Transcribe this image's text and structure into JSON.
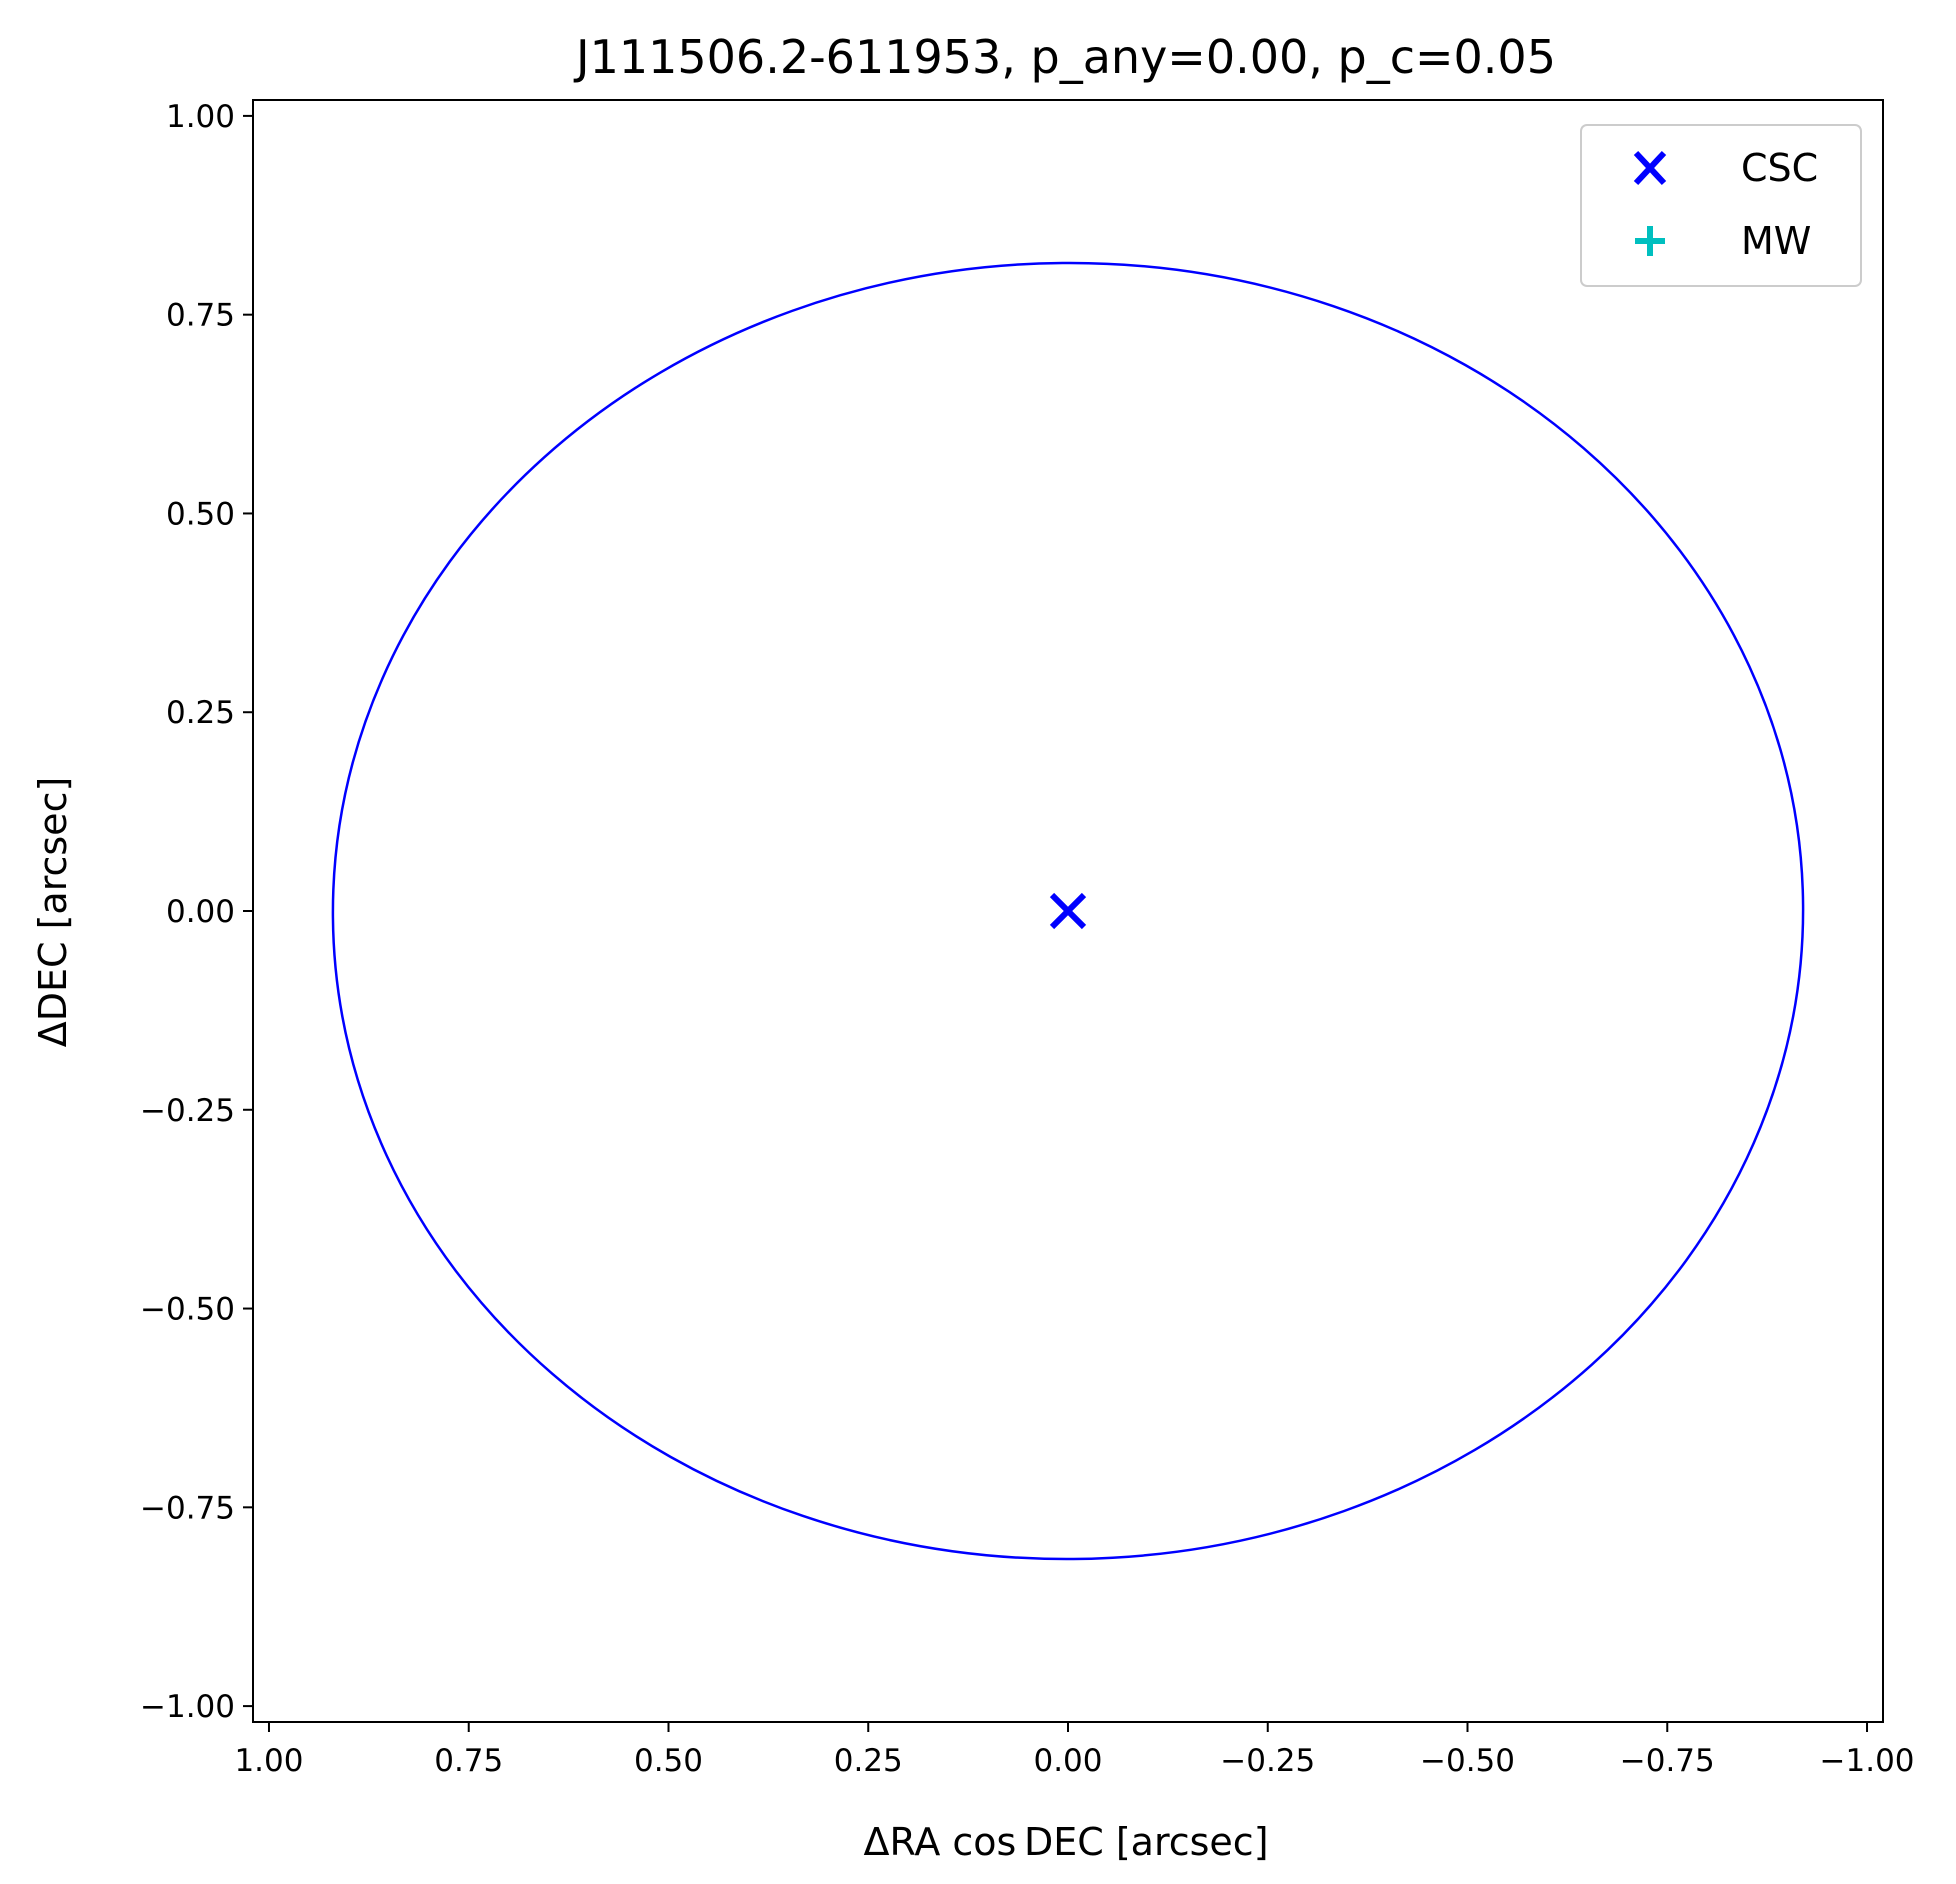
{
  "chart_data": {
    "type": "scatter",
    "title": "J111506.2-611953, p_any=0.00, p_c=0.05",
    "xlabel": "ΔRA cos DEC [arcsec]",
    "ylabel": "ΔDEC [arcsec]",
    "xlim": [
      1.02,
      -1.02
    ],
    "ylim": [
      -1.02,
      1.02
    ],
    "x_inverted": true,
    "grid": false,
    "x_ticks": [
      1.0,
      0.75,
      0.5,
      0.25,
      0.0,
      -0.25,
      -0.5,
      -0.75,
      -1.0
    ],
    "x_tick_labels": [
      "1.00",
      "0.75",
      "0.50",
      "0.25",
      "0.00",
      "−0.25",
      "−0.50",
      "−0.75",
      "−1.00"
    ],
    "y_ticks": [
      1.0,
      0.75,
      0.5,
      0.25,
      0.0,
      -0.25,
      -0.5,
      -0.75,
      -1.0
    ],
    "y_tick_labels": [
      "1.00",
      "0.75",
      "0.50",
      "0.25",
      "0.00",
      "−0.25",
      "−0.50",
      "−0.75",
      "−1.00"
    ],
    "series": [
      {
        "name": "CSC",
        "marker": "x",
        "color": "#0000ff",
        "points": [
          {
            "x": 0.0,
            "y": 0.0
          }
        ]
      },
      {
        "name": "MW",
        "marker": "+",
        "color": "#00bfbf",
        "points": []
      }
    ],
    "error_ellipse": {
      "center": [
        0.0,
        0.0
      ],
      "semi_major": 0.92,
      "semi_minor": 0.815,
      "angle_deg": -0.5,
      "color": "#0000ff"
    },
    "legend": {
      "position": "top-right",
      "entries": [
        "CSC",
        "MW"
      ]
    }
  }
}
